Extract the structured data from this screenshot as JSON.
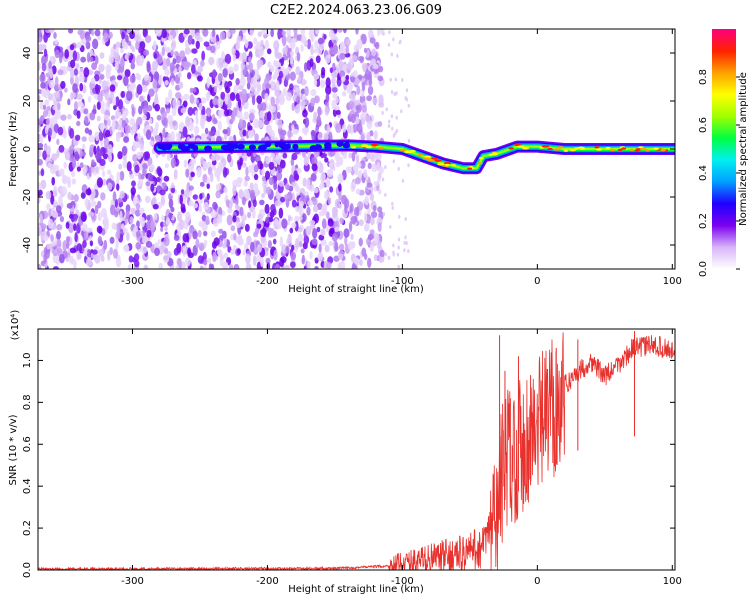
{
  "title": "C2E2.2024.063.23.06.G09",
  "chart_data": [
    {
      "type": "heatmap",
      "xlabel": "Height of straight line (km)",
      "ylabel": "Frequency (Hz)",
      "xlim": [
        -370,
        102
      ],
      "ylim": [
        -50,
        50
      ],
      "xticks": [
        -300,
        -200,
        -100,
        0,
        100
      ],
      "yticks": [
        -40,
        -20,
        0,
        20,
        40
      ],
      "colorbar": {
        "label": "Normalized spectral amplitude",
        "range": [
          0.0,
          1.0
        ],
        "ticks": [
          0.0,
          0.2,
          0.4,
          0.6,
          0.8
        ],
        "colors": [
          "#ffffff",
          "#d8b4f8",
          "#7a00f0",
          "#2000ff",
          "#00a0ff",
          "#00f0f0",
          "#00ff40",
          "#a0ff00",
          "#ffff00",
          "#ffa000",
          "#ff2000",
          "#ff0080"
        ]
      },
      "noise_region_x": [
        -370,
        -115
      ],
      "signal_track": [
        {
          "x": -280,
          "y": 0.5
        },
        {
          "x": -200,
          "y": 1.0
        },
        {
          "x": -140,
          "y": 1.5
        },
        {
          "x": -120,
          "y": 1.0
        },
        {
          "x": -100,
          "y": 0.0
        },
        {
          "x": -85,
          "y": -3.0
        },
        {
          "x": -70,
          "y": -6.0
        },
        {
          "x": -55,
          "y": -8.0
        },
        {
          "x": -45,
          "y": -8.0
        },
        {
          "x": -40,
          "y": -3.0
        },
        {
          "x": -30,
          "y": -2.0
        },
        {
          "x": -15,
          "y": 1.0
        },
        {
          "x": 0,
          "y": 1.0
        },
        {
          "x": 20,
          "y": 0.0
        },
        {
          "x": 60,
          "y": 0.0
        },
        {
          "x": 102,
          "y": 0.0
        }
      ]
    },
    {
      "type": "line",
      "xlabel": "Height of straight line (km)",
      "ylabel": "SNR (10 * v/v)",
      "y_multiplier": "(x10⁴)",
      "xlim": [
        -370,
        102
      ],
      "ylim": [
        0,
        1.15
      ],
      "xticks": [
        -300,
        -200,
        -100,
        0,
        100
      ],
      "yticks": [
        0.0,
        0.2,
        0.4,
        0.6,
        0.8,
        1.0
      ],
      "line_color": "#e8302c",
      "series": [
        {
          "envelope": [
            {
              "x": -370,
              "y": 0.005
            },
            {
              "x": -150,
              "y": 0.008
            },
            {
              "x": -110,
              "y": 0.02
            },
            {
              "x": -90,
              "y": 0.05
            },
            {
              "x": -60,
              "y": 0.08
            },
            {
              "x": -40,
              "y": 0.12
            },
            {
              "x": -30,
              "y": 0.3
            },
            {
              "x": -25,
              "y": 0.55
            },
            {
              "x": -15,
              "y": 0.62
            },
            {
              "x": 0,
              "y": 0.7
            },
            {
              "x": 15,
              "y": 0.85
            },
            {
              "x": 30,
              "y": 0.95
            },
            {
              "x": 40,
              "y": 1.0
            },
            {
              "x": 50,
              "y": 0.93
            },
            {
              "x": 60,
              "y": 0.98
            },
            {
              "x": 70,
              "y": 1.06
            },
            {
              "x": 85,
              "y": 1.08
            },
            {
              "x": 102,
              "y": 1.05
            }
          ],
          "spikes": [
            {
              "x": -28,
              "y": 1.12
            },
            {
              "x": -24,
              "y": 0.95
            },
            {
              "x": -20,
              "y": 0.82
            },
            {
              "x": -14,
              "y": 1.02
            },
            {
              "x": -10,
              "y": 0.45
            },
            {
              "x": -5,
              "y": 0.93
            },
            {
              "x": 14,
              "y": 1.06
            },
            {
              "x": 30,
              "y": 1.1
            },
            {
              "x": 72,
              "y": 1.14
            }
          ]
        }
      ]
    }
  ]
}
